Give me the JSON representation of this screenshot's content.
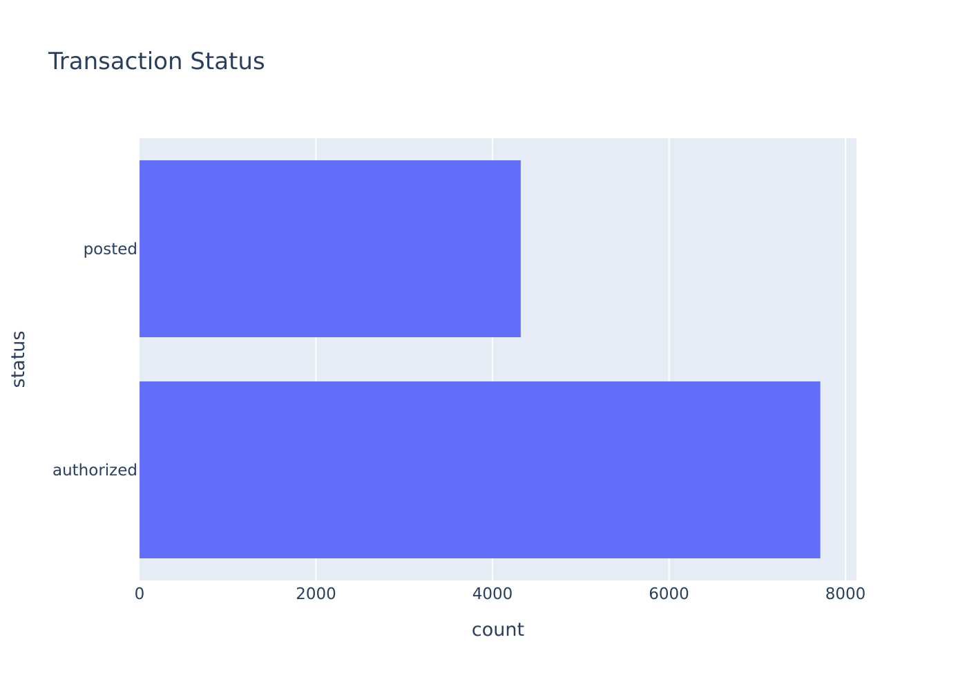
{
  "chart_data": {
    "type": "bar",
    "orientation": "horizontal",
    "title": "Transaction Status",
    "xlabel": "count",
    "ylabel": "status",
    "categories": [
      "posted",
      "authorized"
    ],
    "values": [
      4320,
      7715
    ],
    "xlim": [
      0,
      8125
    ],
    "xticks": [
      0,
      2000,
      4000,
      6000,
      8000
    ],
    "xtick_labels": [
      "0",
      "2000",
      "4000",
      "6000",
      "8000"
    ],
    "grid": true,
    "legend": "none",
    "colors": {
      "bar": "#636efa",
      "plot_background": "#e5ecf6",
      "grid": "#ffffff",
      "text": "#2a3f5f"
    }
  }
}
